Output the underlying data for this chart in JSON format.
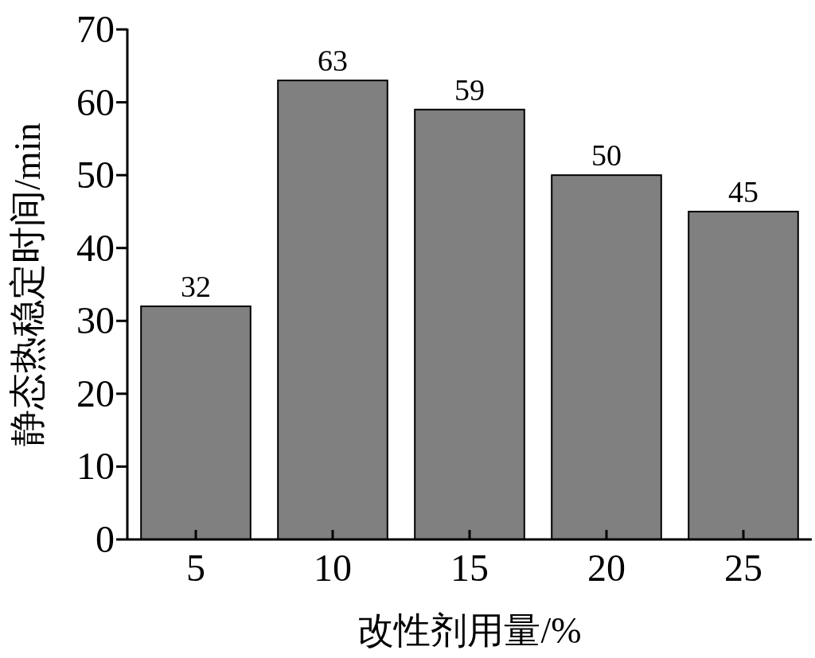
{
  "chart_data": {
    "type": "bar",
    "xlabel": "改性剂用量/%",
    "ylabel": "静态热稳定时间/min",
    "categories": [
      "5",
      "10",
      "15",
      "20",
      "25"
    ],
    "values": [
      32,
      63,
      59,
      50,
      45
    ],
    "color": "#808080",
    "ylim": [
      0,
      70
    ],
    "yticks": [
      0,
      10,
      20,
      30,
      40,
      50,
      60,
      70
    ],
    "data_labels": true
  }
}
